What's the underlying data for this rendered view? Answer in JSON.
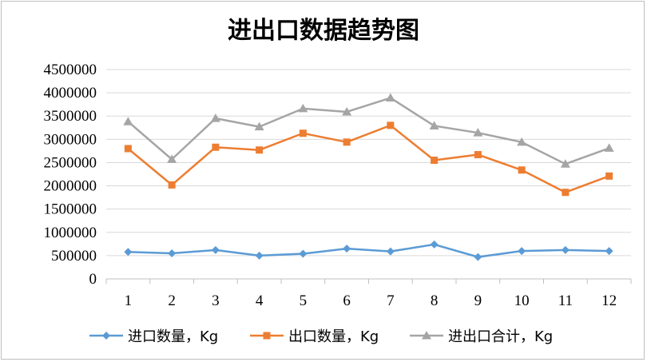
{
  "chart_data": {
    "type": "line",
    "title": "进出口数据趋势图",
    "xlabel": "",
    "ylabel": "",
    "categories": [
      "1",
      "2",
      "3",
      "4",
      "5",
      "6",
      "7",
      "8",
      "9",
      "10",
      "11",
      "12"
    ],
    "ylim": [
      0,
      4500000
    ],
    "yticks": [
      0,
      500000,
      1000000,
      1500000,
      2000000,
      2500000,
      3000000,
      3500000,
      4000000,
      4500000
    ],
    "ytick_labels": [
      "0",
      "500000",
      "1000000",
      "1500000",
      "2000000",
      "2500000",
      "3000000",
      "3500000",
      "4000000",
      "4500000"
    ],
    "grid": "horizontal",
    "legend_position": "bottom",
    "series": [
      {
        "name": "进口数量，Kg",
        "color": "#5B9BD5",
        "marker": "diamond",
        "values": [
          580000,
          550000,
          620000,
          500000,
          540000,
          650000,
          590000,
          740000,
          470000,
          600000,
          620000,
          600000
        ]
      },
      {
        "name": "出口数量，Kg",
        "color": "#ED7D31",
        "marker": "square",
        "values": [
          2800000,
          2020000,
          2830000,
          2770000,
          3130000,
          2940000,
          3300000,
          2550000,
          2670000,
          2340000,
          1860000,
          2210000
        ]
      },
      {
        "name": "进出口合计，Kg",
        "color": "#A5A5A5",
        "marker": "triangle",
        "values": [
          3380000,
          2570000,
          3450000,
          3270000,
          3660000,
          3590000,
          3890000,
          3290000,
          3140000,
          2940000,
          2470000,
          2810000
        ]
      }
    ]
  }
}
